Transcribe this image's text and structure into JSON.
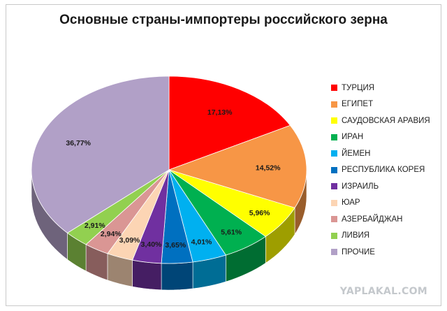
{
  "chart_data": {
    "type": "pie",
    "title": "Основные страны-импортеры российского зерна",
    "categories": [
      "ТУРЦИЯ",
      "ЕГИПЕТ",
      "САУДОВСКАЯ АРАВИЯ",
      "ИРАН",
      "ЙЕМЕН",
      "РЕСПУБЛИКА КОРЕЯ",
      "ИЗРАИЛЬ",
      "ЮАР",
      "АЗЕРБАЙДЖАН",
      "ЛИВИЯ",
      "ПРОЧИЕ"
    ],
    "values": [
      17.13,
      14.52,
      5.96,
      5.61,
      4.01,
      3.65,
      3.4,
      3.09,
      2.94,
      2.91,
      36.77
    ],
    "labels": [
      "17,13%",
      "14,52%",
      "5,96%",
      "5,61%",
      "4,01%",
      "3,65%",
      "3,40%",
      "3,09%",
      "2,94%",
      "2,91%",
      "36,77%"
    ],
    "colors": [
      "#ff0000",
      "#f79646",
      "#ffff00",
      "#00b050",
      "#00b0f0",
      "#0070c0",
      "#7030a0",
      "#fcd5b4",
      "#da9694",
      "#92d050",
      "#b1a0c7"
    ],
    "legend_position": "right",
    "style": "3d-pie"
  },
  "watermark": "YAPLAKAL.COM"
}
